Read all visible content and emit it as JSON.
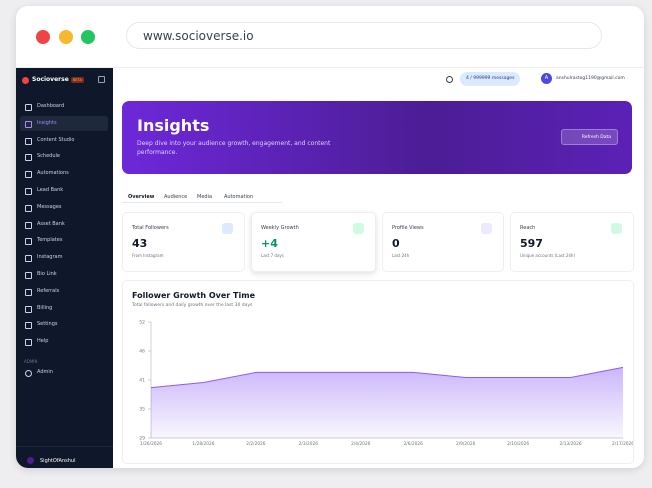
{
  "browser": {
    "url": "www.socioverse.io"
  },
  "sidebar": {
    "brand": "Socioverse",
    "badge": "BETA",
    "items": [
      "Dashboard",
      "Insights",
      "Content Studio",
      "Schedule",
      "Automations",
      "Lead Bank",
      "Messages",
      "Asset Bank",
      "Templates",
      "Instagram",
      "Bio Link",
      "Referrals",
      "Billing",
      "Settings",
      "Help"
    ],
    "active": 1,
    "section": "ADMIN",
    "admin_item": "Admin",
    "user": "SightOfAnshul"
  },
  "topbar": {
    "messages": "4 / 999999 messages",
    "avatar": "A",
    "email": "anshulrastog1190@gmail.com"
  },
  "hero": {
    "title": "Insights",
    "subtitle": "Deep dive into your audience growth, engagement, and content performance.",
    "button": "Refresh Data"
  },
  "tabs": [
    "Overview",
    "Audience",
    "Media",
    "Automation"
  ],
  "stats": [
    {
      "label": "Total Followers",
      "value": "43",
      "note": "From Instagram"
    },
    {
      "label": "Weekly Growth",
      "value": "+4",
      "note": "Last 7 days"
    },
    {
      "label": "Profile Views",
      "value": "0",
      "note": "Last 24h"
    },
    {
      "label": "Reach",
      "value": "597",
      "note": "Unique accounts (Last 24h)"
    }
  ],
  "chart": {
    "type": "area",
    "title": "Follower Growth Over Time",
    "subtitle": "Total followers and daily growth over the last 30 days",
    "categories": [
      "1/26/2026",
      "1/28/2026",
      "2/2/2026",
      "2/3/2026",
      "2/4/2026",
      "2/6/2026",
      "2/9/2026",
      "2/10/2026",
      "2/13/2026",
      "2/17/2026"
    ],
    "values": [
      39,
      40,
      42,
      42,
      42,
      42,
      41,
      41,
      41,
      43
    ],
    "color": "#8b5cf6",
    "ylim": [
      29,
      52
    ],
    "yticks": [
      29,
      {
        "value": 34.75,
        "label": "35"
      },
      {
        "value": 40.5,
        "label": "41"
      },
      {
        "value": 46.25,
        "label": "46"
      },
      52
    ]
  }
}
